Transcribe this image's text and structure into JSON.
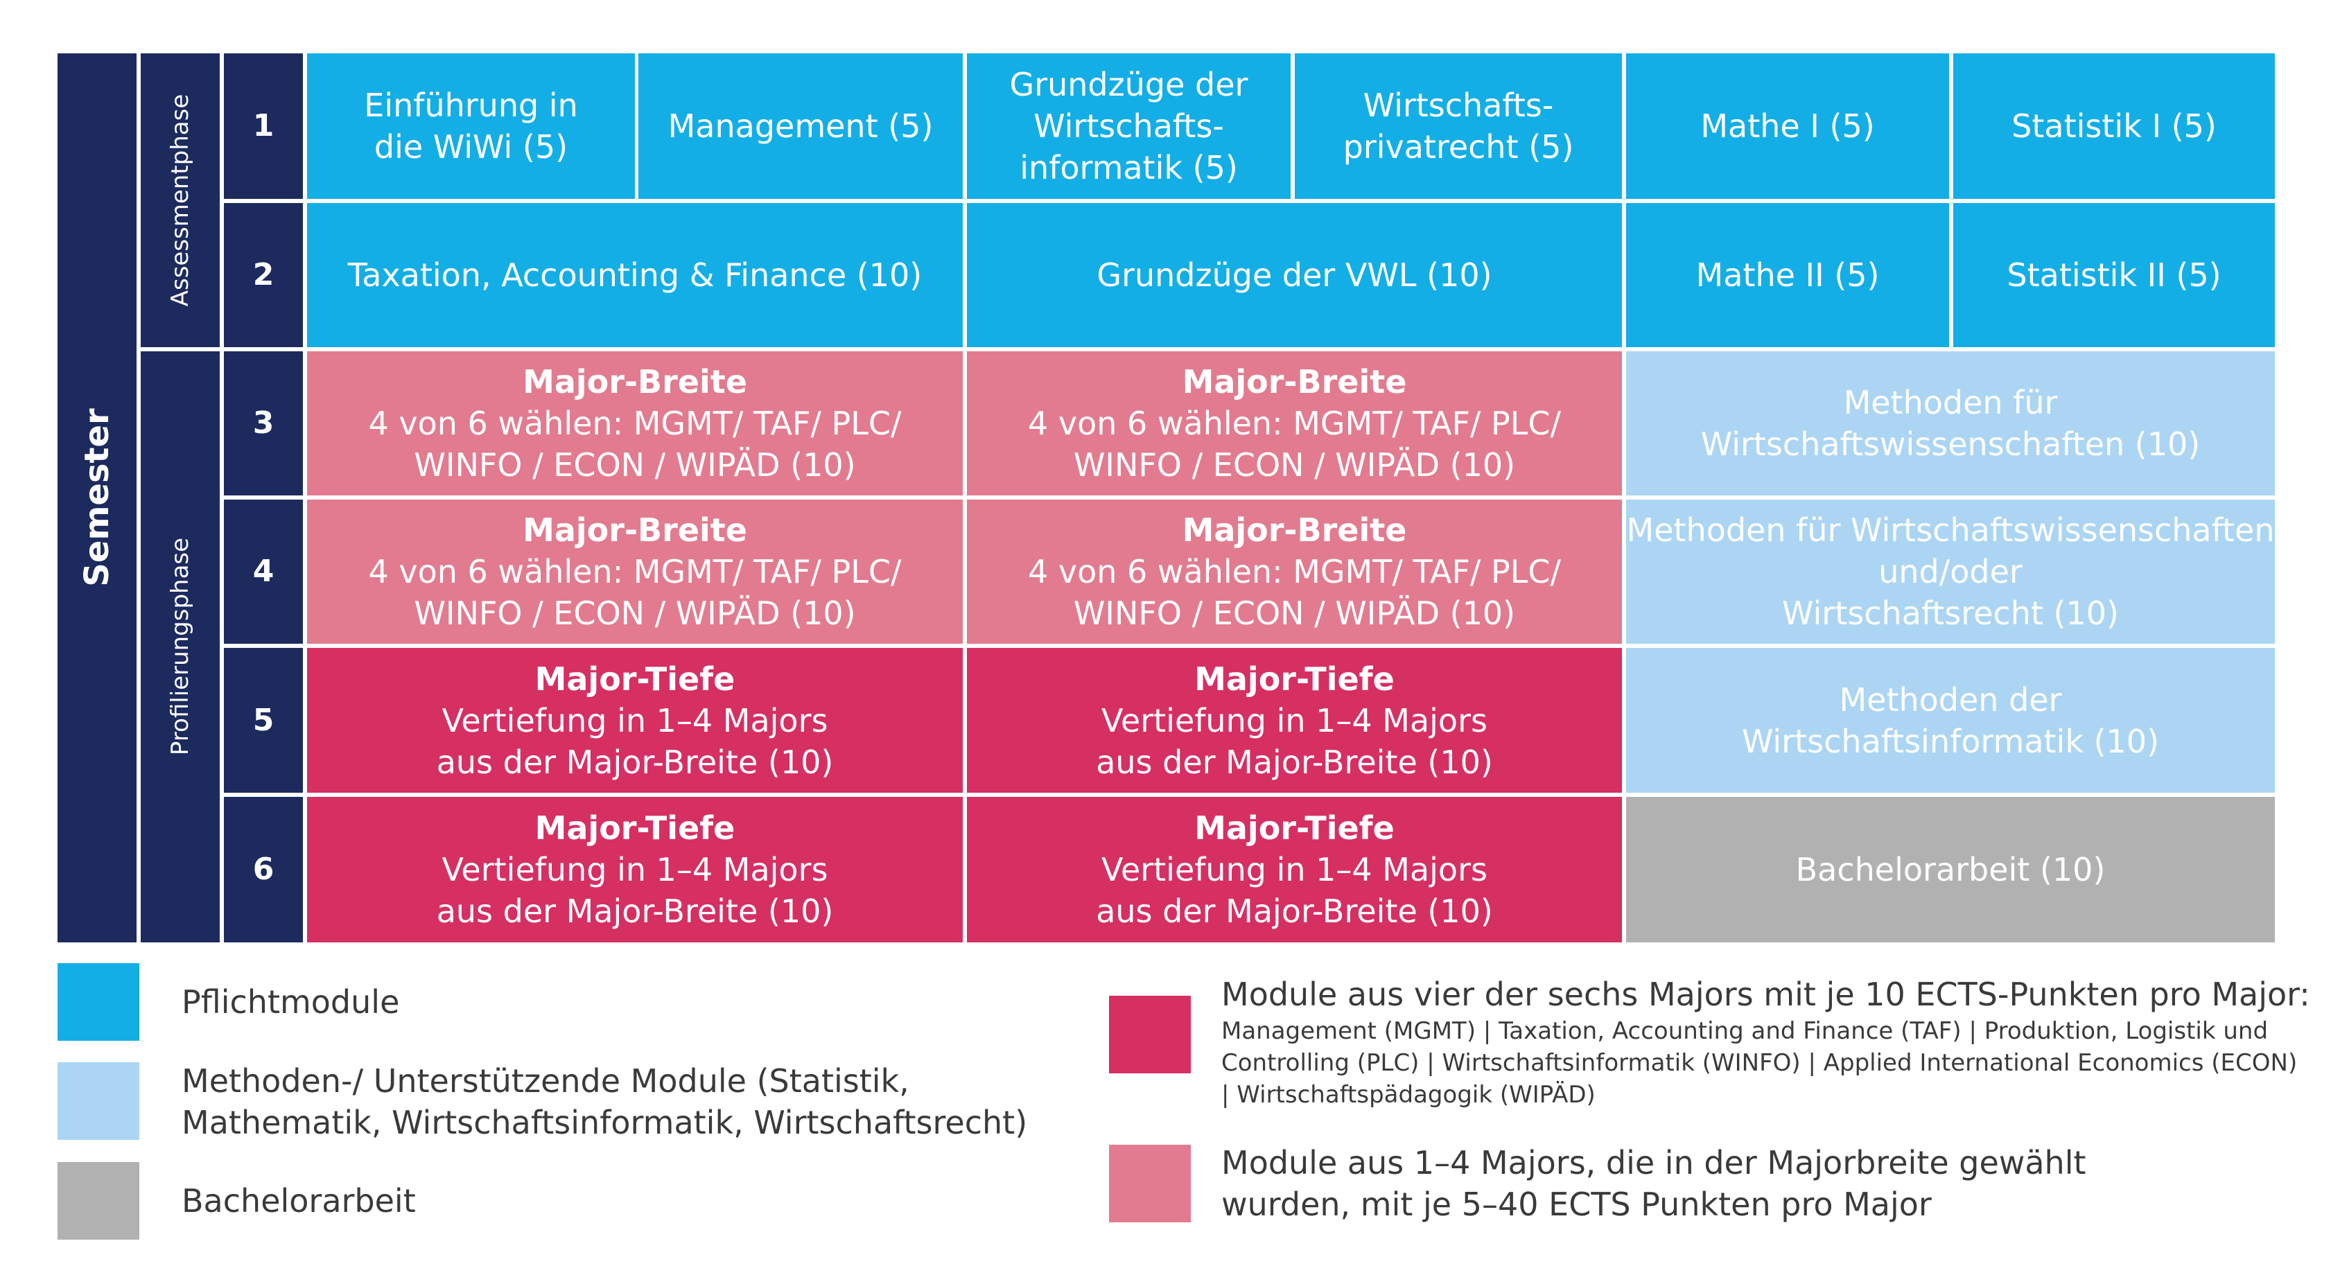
{
  "colors": {
    "dark_navy": "#1c2a5e",
    "pflicht_blue": "#13aee6",
    "methoden_light_blue": "#abd5f3",
    "major_breite_pink": "#e27b8f",
    "major_tiefe_crimson": "#d62f62",
    "bachelor_grey": "#b1b1b1"
  },
  "axis": {
    "semester": "Semester",
    "phase_assessment": "Assessmentphase",
    "phase_profilierung": "Profilierungsphase",
    "semesters": [
      "1",
      "2",
      "3",
      "4",
      "5",
      "6"
    ]
  },
  "grid": {
    "s1": {
      "c1": [
        "Einführung in",
        "die WiWi (5)"
      ],
      "c2": [
        "Management (5)"
      ],
      "c3": [
        "Grundzüge der",
        "Wirtschafts-",
        "informatik (5)"
      ],
      "c4": [
        "Wirtschafts-",
        "privatrecht (5)"
      ],
      "c5": [
        "Mathe I (5)"
      ],
      "c6": [
        "Statistik I (5)"
      ]
    },
    "s2": {
      "c1": [
        "Taxation, Accounting & Finance (10)"
      ],
      "c2": [
        "Grundzüge der VWL (10)"
      ],
      "c3": [
        "Mathe II (5)"
      ],
      "c4": [
        "Statistik II (5)"
      ]
    },
    "s3": {
      "a": {
        "title": "Major-Breite",
        "lines": [
          "4 von 6 wählen: MGMT/ TAF/ PLC/",
          "WINFO / ECON / WIPÄD (10)"
        ]
      },
      "b": {
        "title": "Major-Breite",
        "lines": [
          "4 von 6 wählen: MGMT/ TAF/ PLC/",
          "WINFO / ECON / WIPÄD (10)"
        ]
      },
      "c": [
        "Methoden für",
        "Wirtschaftswissenschaften (10)"
      ]
    },
    "s4": {
      "a": {
        "title": "Major-Breite",
        "lines": [
          "4 von 6 wählen: MGMT/ TAF/ PLC/",
          "WINFO / ECON / WIPÄD (10)"
        ]
      },
      "b": {
        "title": "Major-Breite",
        "lines": [
          "4 von 6 wählen: MGMT/ TAF/ PLC/",
          "WINFO / ECON / WIPÄD (10)"
        ]
      },
      "c": [
        "Methoden für Wirtschaftswissenschaften",
        "und/oder",
        "Wirtschaftsrecht (10)"
      ]
    },
    "s5": {
      "a": {
        "title": "Major-Tiefe",
        "lines": [
          "Vertiefung in 1–4 Majors",
          "aus der Major-Breite (10)"
        ]
      },
      "b": {
        "title": "Major-Tiefe",
        "lines": [
          "Vertiefung in 1–4 Majors",
          "aus der Major-Breite (10)"
        ]
      },
      "c": [
        "Methoden der",
        "Wirtschaftsinformatik (10)"
      ]
    },
    "s6": {
      "a": {
        "title": "Major-Tiefe",
        "lines": [
          "Vertiefung in 1–4 Majors",
          "aus der Major-Breite (10)"
        ]
      },
      "b": {
        "title": "Major-Tiefe",
        "lines": [
          "Vertiefung in 1–4 Majors",
          "aus der Major-Breite (10)"
        ]
      },
      "c": [
        "Bachelorarbeit (10)"
      ]
    }
  },
  "legend": {
    "pflicht": [
      "Pflichtmodule"
    ],
    "methoden": [
      "Methoden-/ Unterstützende Module (Statistik,",
      "Mathematik, Wirtschaftsinformatik, Wirtschaftsrecht)"
    ],
    "bachelor": [
      "Bachelorarbeit"
    ],
    "majors_title": "Module aus vier der sechs Majors mit je 10 ECTS-Punkten pro Major:",
    "majors_detail": [
      "Management (MGMT) | Taxation, Accounting and Finance (TAF) | Produktion, Logistik und",
      "Controlling (PLC) | Wirtschaftsinformatik (WINFO) |  Applied International Economics (ECON)",
      "| Wirtschaftspädagogik (WIPÄD)"
    ],
    "breite": [
      "Module aus 1–4 Majors, die in der Majorbreite gewählt",
      "wurden, mit je 5–40 ECTS Punkten pro Major"
    ]
  }
}
